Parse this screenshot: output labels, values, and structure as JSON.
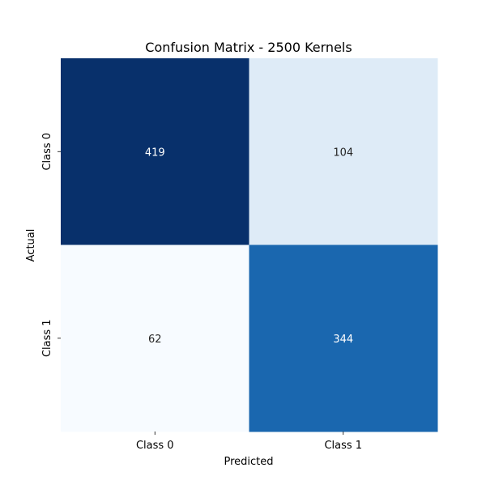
{
  "chart_data": {
    "type": "heatmap",
    "title": "Confusion Matrix - 2500 Kernels",
    "xlabel": "Predicted",
    "ylabel": "Actual",
    "x_categories": [
      "Class 0",
      "Class 1"
    ],
    "y_categories": [
      "Class 0",
      "Class 1"
    ],
    "values": [
      [
        419,
        104
      ],
      [
        62,
        344
      ]
    ],
    "colormap": "Blues",
    "vmin": 62,
    "vmax": 419,
    "colorbar": false
  },
  "colors": {
    "cell_colors": [
      [
        "#08306b",
        "#deebf7"
      ],
      [
        "#f7fbff",
        "#1a67af"
      ]
    ],
    "text_light": "#ffffff",
    "text_dark": "#262626",
    "axis_text": "#000000"
  }
}
